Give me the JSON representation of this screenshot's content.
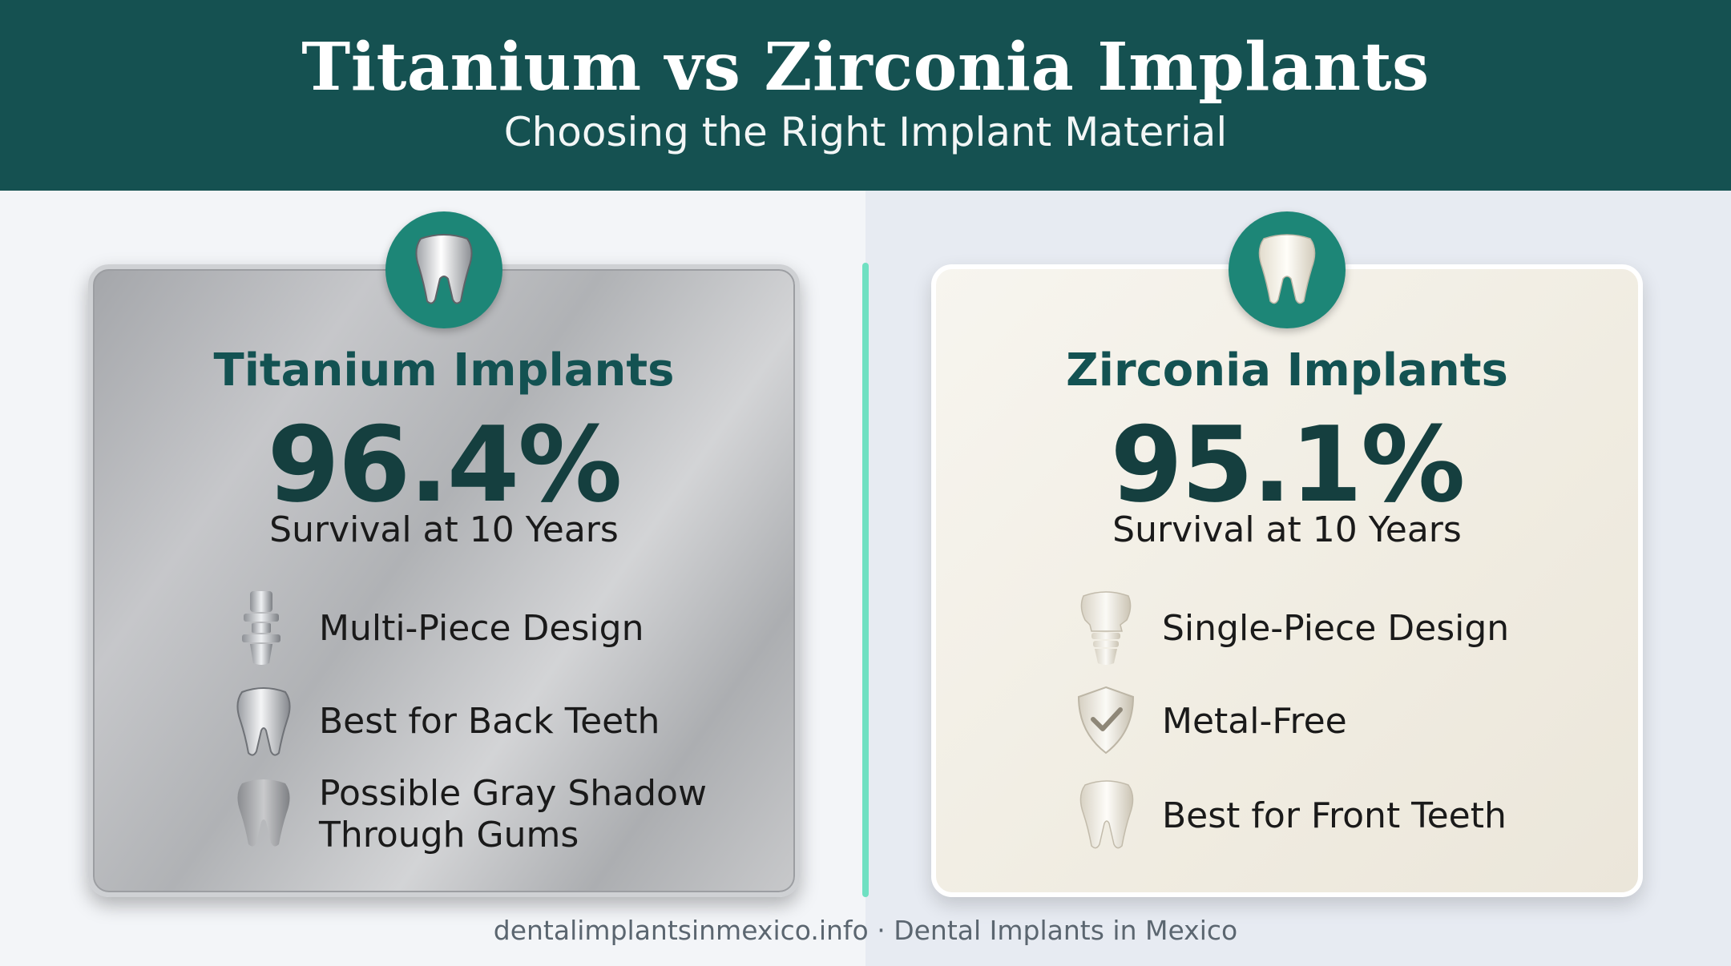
{
  "header": {
    "title": "Titanium vs Zirconia Implants",
    "subtitle": "Choosing the Right Implant Material"
  },
  "colors": {
    "header_bg": "#155151",
    "accent_teal": "#1d8677",
    "divider": "#6fe0c2",
    "heading_text": "#135252"
  },
  "cards": [
    {
      "title": "Titanium Implants",
      "stat": "96.4%",
      "stat_label": "Survival at 10 Years",
      "badge_icon": "tooth-icon",
      "features": [
        {
          "icon": "implant-screw-icon",
          "label": "Multi-Piece Design"
        },
        {
          "icon": "tooth-icon",
          "label": "Best for Back Teeth"
        },
        {
          "icon": "gray-tooth-icon",
          "line1": "Possible Gray Shadow",
          "line2": "Through Gums"
        }
      ]
    },
    {
      "title": "Zirconia Implants",
      "stat": "95.1%",
      "stat_label": "Survival at 10 Years",
      "badge_icon": "tooth-icon",
      "features": [
        {
          "icon": "single-piece-implant-icon",
          "label": "Single-Piece Design"
        },
        {
          "icon": "shield-check-icon",
          "label": "Metal-Free"
        },
        {
          "icon": "tooth-icon",
          "label": "Best for Front Teeth"
        }
      ]
    }
  ],
  "footer": {
    "text": "dentalimplantsinmexico.info · Dental Implants in Mexico"
  }
}
